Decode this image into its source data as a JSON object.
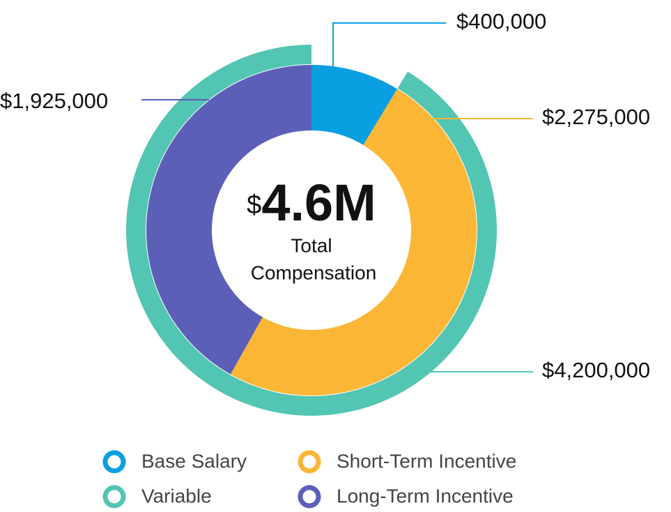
{
  "chart_data": {
    "type": "donut",
    "categories": [
      "Base Salary",
      "Short-Term Incentive",
      "Long-Term Incentive"
    ],
    "values": [
      400000,
      2275000,
      1925000
    ],
    "value_labels": [
      "$400,000",
      "$2,275,000",
      "$1,925,000"
    ],
    "colors": [
      "#0a9fe0",
      "#fbb636",
      "#5b5fb8"
    ],
    "outer": {
      "name": "Variable",
      "value": 4200000,
      "value_label": "$4,200,000",
      "color": "#52c5b3"
    },
    "center_currency": "$",
    "center_amount": "4.6M",
    "center_caption": [
      "Total",
      "Compensation"
    ]
  }
}
